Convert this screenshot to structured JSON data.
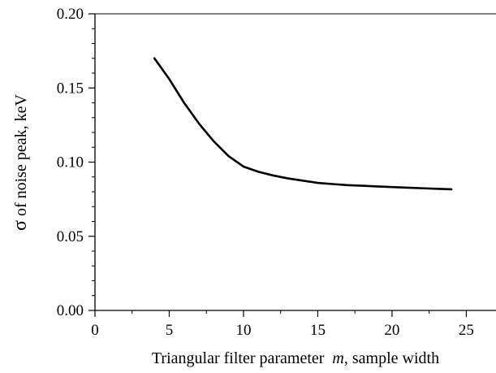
{
  "chart_data": {
    "type": "line",
    "xlabel": "Triangular filter parameter  m, sample width",
    "xlabel_parts": {
      "before": "Triangular filter parameter ",
      "variable": "m",
      "after": ", sample width"
    },
    "ylabel": "σ of noise peak, keV",
    "ylabel_parts": {
      "symbol": "σ",
      "rest": " of noise peak, keV"
    },
    "xlim": [
      0,
      27
    ],
    "ylim": [
      0,
      0.2
    ],
    "xticks": [
      0,
      5,
      10,
      15,
      20,
      25
    ],
    "xtick_labels": [
      "0",
      "5",
      "10",
      "15",
      "20",
      "25"
    ],
    "yticks": [
      0,
      0.05,
      0.1,
      0.15,
      0.2
    ],
    "ytick_labels": [
      "0.00",
      "0.05",
      "0.10",
      "0.15",
      "0.20"
    ],
    "grid": false,
    "series": [
      {
        "x": [
          4,
          5,
          6,
          7,
          8,
          9,
          10,
          11,
          12,
          13,
          14,
          15,
          16,
          17,
          18,
          19,
          20,
          21,
          22,
          23,
          24
        ],
        "y": [
          0.17,
          0.156,
          0.14,
          0.126,
          0.114,
          0.104,
          0.097,
          0.0935,
          0.091,
          0.089,
          0.0875,
          0.086,
          0.0852,
          0.0845,
          0.0841,
          0.0836,
          0.0832,
          0.0828,
          0.0824,
          0.082,
          0.0817
        ]
      }
    ]
  }
}
